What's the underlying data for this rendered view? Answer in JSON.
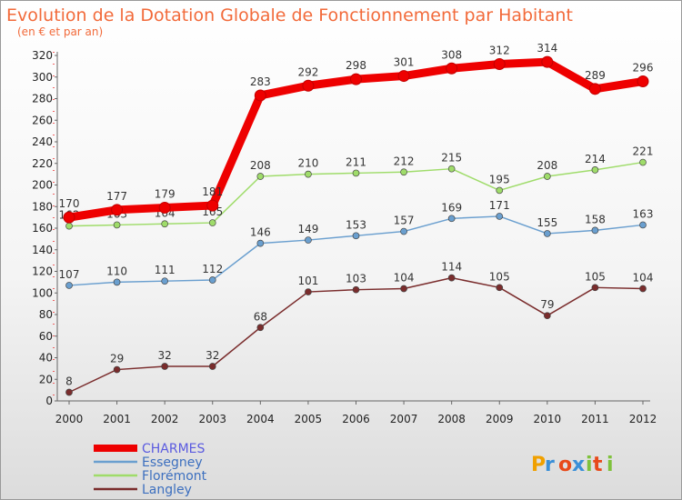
{
  "title": "Evolution de la Dotation Globale de Fonctionnement par Habitant",
  "subtitle": "(en € et par an)",
  "logo_text": "Proxiti",
  "chart_data": {
    "type": "line",
    "x": [
      "2000",
      "2001",
      "2002",
      "2003",
      "2004",
      "2005",
      "2006",
      "2007",
      "2008",
      "2009",
      "2010",
      "2011",
      "2012"
    ],
    "ylim": [
      0,
      320
    ],
    "yticks": [
      0,
      20,
      40,
      60,
      80,
      100,
      120,
      140,
      160,
      180,
      200,
      220,
      240,
      260,
      280,
      300,
      320
    ],
    "grid": false,
    "legend_position": "bottom-left",
    "series": [
      {
        "name": "CHARMES",
        "color": "#ee0000",
        "values": [
          170,
          177,
          179,
          181,
          283,
          292,
          298,
          301,
          308,
          312,
          314,
          289,
          296
        ]
      },
      {
        "name": "Essegney",
        "color": "#6a9fcf",
        "values": [
          107,
          110,
          111,
          112,
          146,
          149,
          153,
          157,
          169,
          171,
          155,
          158,
          163
        ]
      },
      {
        "name": "Florémont",
        "color": "#9fdc6a",
        "values": [
          162,
          163,
          164,
          165,
          208,
          210,
          211,
          212,
          215,
          195,
          208,
          214,
          221
        ]
      },
      {
        "name": "Langley",
        "color": "#7a2c2c",
        "values": [
          8,
          29,
          32,
          32,
          68,
          101,
          103,
          104,
          114,
          105,
          79,
          105,
          104
        ]
      }
    ]
  }
}
